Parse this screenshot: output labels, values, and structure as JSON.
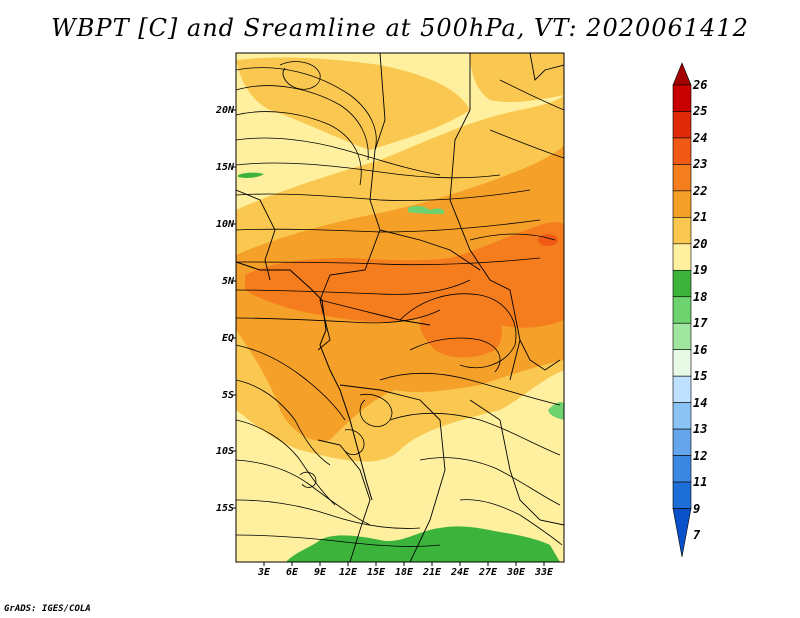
{
  "title": "WBPT [C] and Sreamline at 500hPa, VT: 2020061412",
  "credit": "GrADS: IGES/COLA",
  "y_axis_labels": [
    "20N",
    "15N",
    "10N",
    "5N",
    "EQ",
    "5S",
    "10S",
    "15S"
  ],
  "x_axis_labels": [
    "3E",
    "6E",
    "9E",
    "12E",
    "15E",
    "18E",
    "21E",
    "24E",
    "27E",
    "30E",
    "33E"
  ],
  "colorbar": {
    "labels": [
      "26",
      "25",
      "24",
      "23",
      "22",
      "21",
      "20",
      "19",
      "18",
      "17",
      "16",
      "15",
      "14",
      "13",
      "12",
      "11",
      "9",
      "7"
    ],
    "colors": [
      "#a50000",
      "#c80000",
      "#e12a0a",
      "#f05a14",
      "#f57d1e",
      "#f5a028",
      "#fac850",
      "#fff0a0",
      "#3cb43c",
      "#6ed26e",
      "#a0e6a0",
      "#e6fae6",
      "#bee1ff",
      "#8cc3f5",
      "#64a5eb",
      "#3c87e1",
      "#1e6ed7",
      "#0a50c8"
    ]
  },
  "map_fields": {
    "colors": {
      "land_base": "#fff0a0",
      "warm": "#fac850",
      "warmer": "#f5a028",
      "hot": "#f57d1e",
      "green": "#3cb43c",
      "light_green": "#6ed26e"
    }
  }
}
